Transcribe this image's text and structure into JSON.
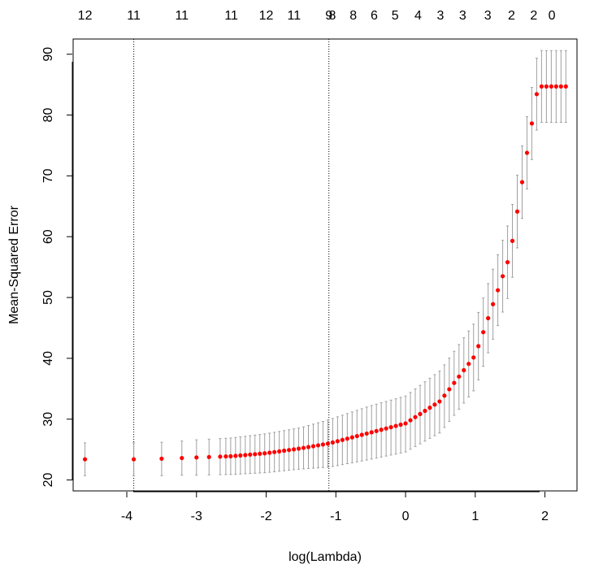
{
  "chart_data": {
    "type": "scatter",
    "title": "",
    "xlabel": "log(Lambda)",
    "ylabel": "Mean-Squared Error",
    "xlim": [
      -4.77,
      2.46
    ],
    "ylim": [
      18.2,
      92.5
    ],
    "x_ticks": [
      -4,
      -3,
      -2,
      -1,
      0,
      1,
      2
    ],
    "y_ticks": [
      20,
      30,
      40,
      50,
      60,
      70,
      80,
      90
    ],
    "top_axis": {
      "positions": [
        -4.6,
        -3.9,
        -3.21,
        -2.5,
        -2.0,
        -1.6,
        -1.1,
        -1.05,
        -0.75,
        -0.45,
        -0.15,
        0.18,
        0.5,
        0.82,
        1.18,
        1.52,
        1.84,
        2.1
      ],
      "labels": [
        "12",
        "11",
        "11",
        "11",
        "12",
        "11",
        "9",
        "8",
        "8",
        "6",
        "5",
        "4",
        "3",
        "3",
        "3",
        "2",
        "2",
        "0"
      ]
    },
    "vlines": [
      -3.9,
      -1.1
    ],
    "log_lambda_min": -4.6,
    "log_lambda_max": 2.3,
    "n_points": 100,
    "colors": {
      "points": "#ff0000",
      "error_bars": "#a0a0a0",
      "axes": "#000000"
    },
    "series": [
      {
        "x": -4.6,
        "mse": 23.4,
        "lower": 20.7,
        "upper": 26.1
      },
      {
        "x": -3.9,
        "mse": 23.4,
        "lower": 20.7,
        "upper": 26.1
      },
      {
        "x": -3.5,
        "mse": 23.5,
        "lower": 20.7,
        "upper": 26.2
      },
      {
        "x": -3.21,
        "mse": 23.6,
        "lower": 20.8,
        "upper": 26.4
      },
      {
        "x": -3.0,
        "mse": 23.7,
        "lower": 20.8,
        "upper": 26.6
      },
      {
        "x": -2.5,
        "mse": 23.9,
        "lower": 20.9,
        "upper": 26.9
      },
      {
        "x": -2.0,
        "mse": 24.4,
        "lower": 21.2,
        "upper": 27.6
      },
      {
        "x": -1.5,
        "mse": 25.2,
        "lower": 21.8,
        "upper": 28.6
      },
      {
        "x": -1.1,
        "mse": 26.0,
        "lower": 22.1,
        "upper": 29.9
      },
      {
        "x": -0.5,
        "mse": 27.8,
        "lower": 23.4,
        "upper": 32.2
      },
      {
        "x": 0.0,
        "mse": 29.3,
        "lower": 24.6,
        "upper": 33.8
      },
      {
        "x": 0.5,
        "mse": 33.0,
        "lower": 27.8,
        "upper": 38.0
      },
      {
        "x": 1.0,
        "mse": 40.5,
        "lower": 35.0,
        "upper": 46.0
      },
      {
        "x": 1.5,
        "mse": 57.0,
        "lower": 51.0,
        "upper": 63.0
      },
      {
        "x": 1.9,
        "mse": 84.7,
        "lower": 78.8,
        "upper": 90.6
      },
      {
        "x": 2.3,
        "mse": 84.7,
        "lower": 78.8,
        "upper": 90.6
      }
    ]
  }
}
